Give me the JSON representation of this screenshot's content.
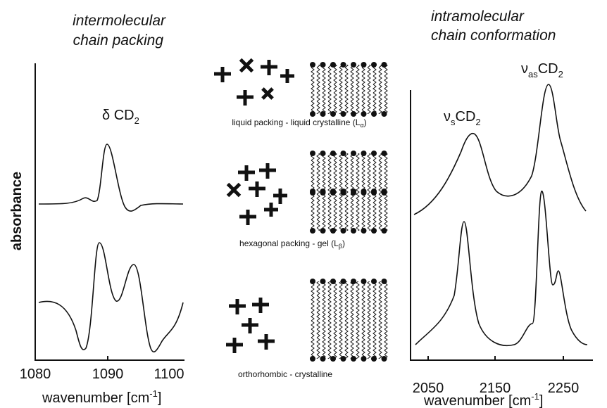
{
  "left_panel": {
    "title_lines": [
      "intermolecular",
      "chain packing"
    ],
    "peak_label": {
      "main": "δ CD",
      "sub": "2"
    },
    "y_label": "absorbance",
    "x_ticks": [
      "1080",
      "1090",
      "1100"
    ],
    "x_label": {
      "main": "wavenumber [cm",
      "sup": "-1",
      "end": "]"
    }
  },
  "middle_panel": {
    "captions": [
      {
        "main": "liquid packing - liquid crystalline (L",
        "sub": "α",
        "end": ")"
      },
      {
        "main": "hexagonal packing - gel (L",
        "sub": "β",
        "end": ")"
      },
      {
        "main": "orthorhombic - crystalline"
      }
    ]
  },
  "right_panel": {
    "title_lines": [
      "intramolecular",
      "chain conformation"
    ],
    "peak_labels": [
      {
        "nu": "ν",
        "sub": "s",
        "main": "CD",
        "sub2": "2"
      },
      {
        "nu": "ν",
        "sub": "as",
        "main": "CD",
        "sub2": "2"
      }
    ],
    "x_ticks": [
      "2050",
      "2150",
      "2250"
    ],
    "x_label": {
      "main": "wavenumber [cm",
      "sup": "-1",
      "end": "]"
    }
  }
}
